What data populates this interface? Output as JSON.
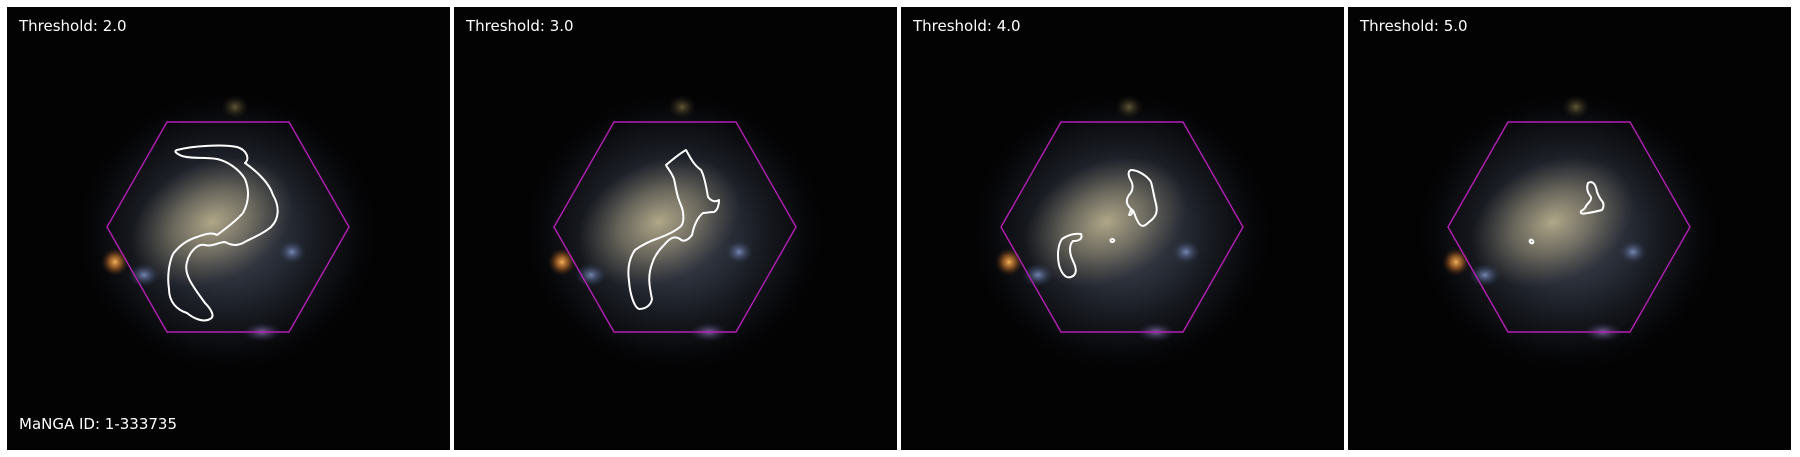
{
  "panels": [
    {
      "threshold_label": "Threshold: 2.0"
    },
    {
      "threshold_label": "Threshold: 3.0"
    },
    {
      "threshold_label": "Threshold: 4.0"
    },
    {
      "threshold_label": "Threshold: 5.0"
    }
  ],
  "galaxy": {
    "id_label": "MaNGA ID: 1-333735"
  },
  "colors": {
    "hexagon": "#b41fb4",
    "contour": "#ffffff",
    "background": "#030304"
  }
}
